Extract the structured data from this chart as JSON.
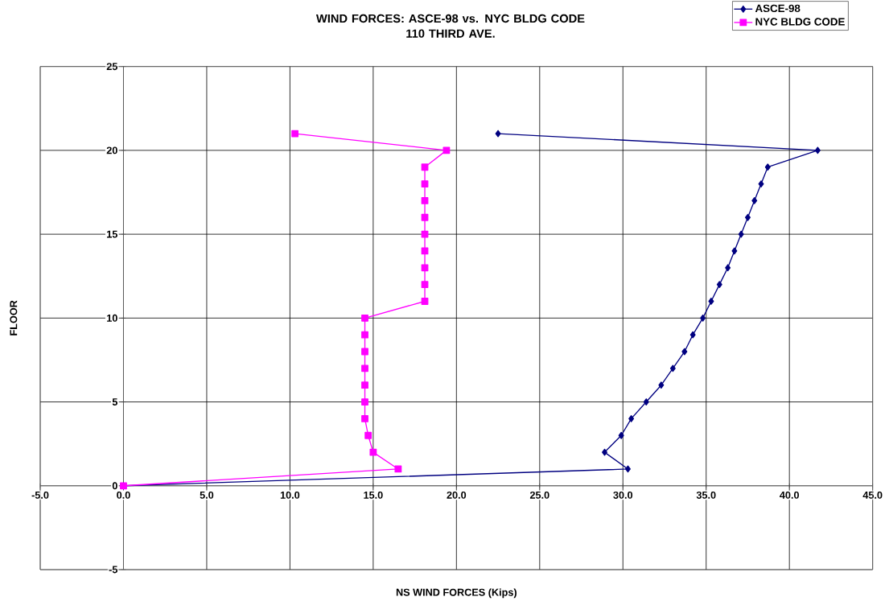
{
  "chart_data": {
    "type": "line",
    "title": "WIND FORCES:  ASCE-98 vs. NYC BLDG CODE\n110 THIRD AVE.",
    "xlabel": "NS WIND FORCES (Kips)",
    "ylabel": "FLOOR",
    "series": [
      {
        "name": "ASCE-98",
        "color": "#000080",
        "marker": "diamond",
        "x": [
          0,
          30.3,
          28.9,
          29.9,
          30.5,
          31.4,
          32.3,
          33.0,
          33.7,
          34.2,
          34.8,
          35.3,
          35.8,
          36.3,
          36.7,
          37.1,
          37.5,
          37.9,
          38.3,
          38.7,
          41.7,
          22.5
        ],
        "values": [
          0,
          1,
          2,
          3,
          4,
          5,
          6,
          7,
          8,
          9,
          10,
          11,
          12,
          13,
          14,
          15,
          16,
          17,
          18,
          19,
          20,
          21
        ]
      },
      {
        "name": "NYC BLDG CODE",
        "color": "#ff00ff",
        "marker": "square",
        "x": [
          0,
          16.5,
          15.0,
          14.7,
          14.5,
          14.5,
          14.5,
          14.5,
          14.5,
          14.5,
          14.5,
          18.1,
          18.1,
          18.1,
          18.1,
          18.1,
          18.1,
          18.1,
          18.1,
          18.1,
          19.4,
          10.3
        ],
        "values": [
          0,
          1,
          2,
          3,
          4,
          5,
          6,
          7,
          8,
          9,
          10,
          11,
          12,
          13,
          14,
          15,
          16,
          17,
          18,
          19,
          20,
          21
        ]
      }
    ],
    "xlim": [
      -5,
      45
    ],
    "ylim": [
      -5,
      25
    ],
    "xticks": [
      {
        "value": -5,
        "label": "-5.0"
      },
      {
        "value": 0,
        "label": "0.0"
      },
      {
        "value": 5,
        "label": "5.0"
      },
      {
        "value": 10,
        "label": "10.0"
      },
      {
        "value": 15,
        "label": "15.0"
      },
      {
        "value": 20,
        "label": "20.0"
      },
      {
        "value": 25,
        "label": "25.0"
      },
      {
        "value": 30,
        "label": "30.0"
      },
      {
        "value": 35,
        "label": "35.0"
      },
      {
        "value": 40,
        "label": "40.0"
      },
      {
        "value": 45,
        "label": "45.0"
      }
    ],
    "yticks": [
      -5,
      0,
      5,
      10,
      15,
      20,
      25
    ],
    "grid": true,
    "legend": "top right"
  }
}
